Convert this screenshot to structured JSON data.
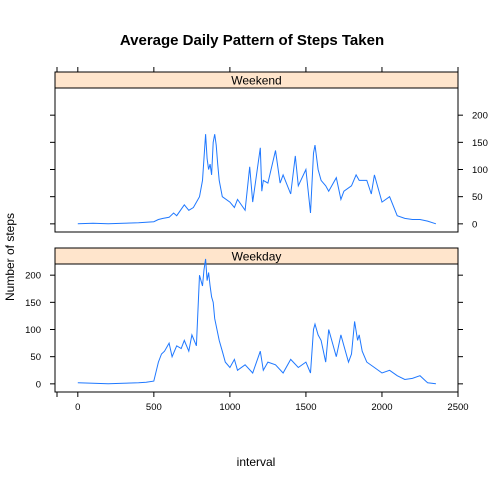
{
  "chart_data": {
    "type": "line",
    "title": "Average Daily Pattern of Steps Taken",
    "xlabel": "interval",
    "ylabel": "Number of steps",
    "xlim": [
      -150,
      2500
    ],
    "ylim": [
      -15,
      250
    ],
    "x_ticks": [
      0,
      500,
      1000,
      1500,
      2000
    ],
    "y_ticks": [
      0,
      50,
      100,
      150,
      200
    ],
    "line_color": "#1f78ff",
    "strip_color": "#ffe5cc",
    "panels": [
      {
        "name": "Weekend",
        "tick_side": "right",
        "x": [
          0,
          100,
          200,
          300,
          400,
          450,
          500,
          530,
          560,
          600,
          630,
          650,
          700,
          730,
          760,
          800,
          820,
          840,
          850,
          860,
          870,
          880,
          890,
          900,
          910,
          920,
          930,
          950,
          1000,
          1030,
          1050,
          1100,
          1130,
          1150,
          1200,
          1210,
          1220,
          1250,
          1300,
          1330,
          1350,
          1400,
          1430,
          1450,
          1500,
          1530,
          1550,
          1560,
          1580,
          1600,
          1630,
          1650,
          1700,
          1730,
          1750,
          1800,
          1830,
          1850,
          1900,
          1930,
          1950,
          2000,
          2050,
          2100,
          2150,
          2200,
          2250,
          2300,
          2355
        ],
        "y": [
          0,
          1,
          0,
          1,
          2,
          3,
          4,
          8,
          10,
          12,
          20,
          15,
          35,
          25,
          30,
          50,
          80,
          165,
          120,
          100,
          110,
          90,
          150,
          165,
          145,
          110,
          80,
          50,
          40,
          30,
          45,
          25,
          105,
          40,
          140,
          60,
          80,
          75,
          135,
          75,
          90,
          55,
          125,
          70,
          100,
          20,
          130,
          145,
          100,
          80,
          70,
          60,
          85,
          45,
          60,
          70,
          90,
          80,
          80,
          55,
          90,
          40,
          50,
          15,
          10,
          8,
          8,
          5,
          0
        ]
      },
      {
        "name": "Weekday",
        "tick_side": "left",
        "x": [
          0,
          100,
          200,
          300,
          400,
          450,
          500,
          530,
          550,
          570,
          600,
          620,
          650,
          680,
          700,
          730,
          750,
          780,
          800,
          820,
          830,
          840,
          850,
          860,
          870,
          880,
          890,
          900,
          930,
          950,
          970,
          1000,
          1030,
          1050,
          1100,
          1150,
          1200,
          1220,
          1250,
          1300,
          1350,
          1400,
          1450,
          1500,
          1530,
          1550,
          1560,
          1580,
          1600,
          1630,
          1650,
          1700,
          1730,
          1750,
          1780,
          1800,
          1820,
          1840,
          1850,
          1870,
          1900,
          1950,
          2000,
          2050,
          2100,
          2150,
          2200,
          2250,
          2300,
          2355
        ],
        "y": [
          2,
          1,
          0,
          1,
          2,
          3,
          5,
          40,
          55,
          60,
          75,
          50,
          70,
          65,
          80,
          60,
          90,
          70,
          200,
          180,
          210,
          230,
          190,
          205,
          180,
          160,
          150,
          120,
          80,
          60,
          40,
          30,
          45,
          25,
          35,
          20,
          60,
          25,
          40,
          35,
          20,
          45,
          30,
          40,
          20,
          100,
          110,
          90,
          80,
          40,
          100,
          50,
          90,
          70,
          40,
          55,
          115,
          80,
          90,
          60,
          40,
          30,
          20,
          25,
          15,
          8,
          10,
          15,
          2,
          0
        ]
      }
    ]
  }
}
